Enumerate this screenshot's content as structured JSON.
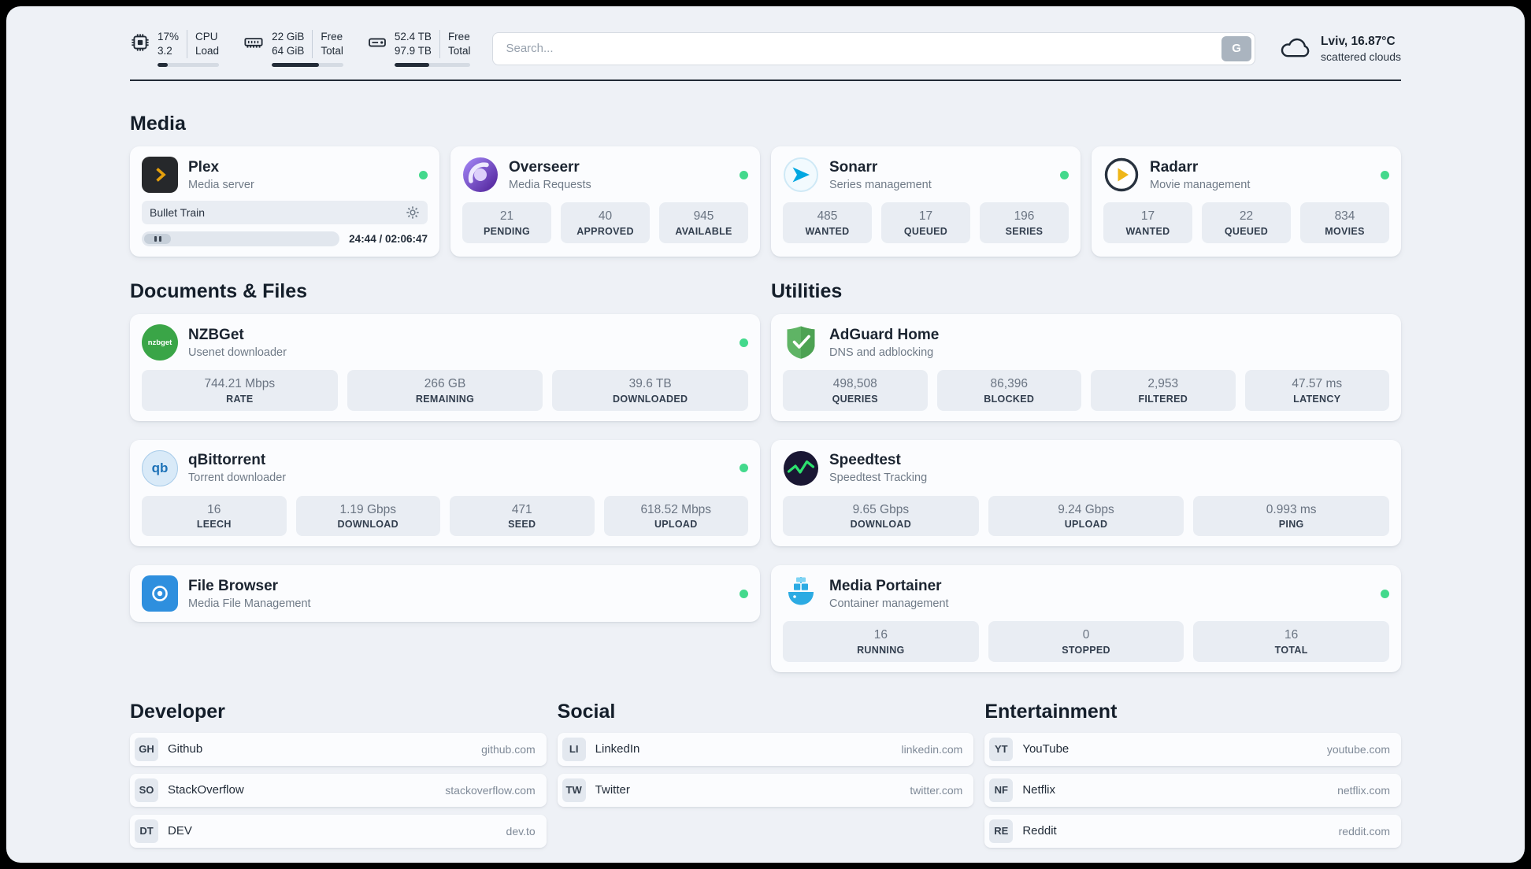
{
  "topbar": {
    "cpu": {
      "line1": "17%",
      "line2": "3.2",
      "label1": "CPU",
      "label2": "Load",
      "percent": 17
    },
    "ram": {
      "line1": "22 GiB",
      "line2": "64 GiB",
      "label1": "Free",
      "label2": "Total",
      "percent": 66
    },
    "disk": {
      "line1": "52.4 TB",
      "line2": "97.9 TB",
      "label1": "Free",
      "label2": "Total",
      "percent": 46
    },
    "search": {
      "placeholder": "Search...",
      "engine_button": "G"
    },
    "weather": {
      "location": "Lviv, 16.87°C",
      "condition": "scattered clouds"
    }
  },
  "sections": {
    "media": {
      "title": "Media",
      "plex": {
        "name": "Plex",
        "subtitle": "Media server",
        "now_playing": "Bullet Train",
        "time": "24:44 / 02:06:47"
      },
      "overseerr": {
        "name": "Overseerr",
        "subtitle": "Media Requests",
        "stats": [
          {
            "value": "21",
            "label": "PENDING"
          },
          {
            "value": "40",
            "label": "APPROVED"
          },
          {
            "value": "945",
            "label": "AVAILABLE"
          }
        ]
      },
      "sonarr": {
        "name": "Sonarr",
        "subtitle": "Series management",
        "stats": [
          {
            "value": "485",
            "label": "WANTED"
          },
          {
            "value": "17",
            "label": "QUEUED"
          },
          {
            "value": "196",
            "label": "SERIES"
          }
        ]
      },
      "radarr": {
        "name": "Radarr",
        "subtitle": "Movie management",
        "stats": [
          {
            "value": "17",
            "label": "WANTED"
          },
          {
            "value": "22",
            "label": "QUEUED"
          },
          {
            "value": "834",
            "label": "MOVIES"
          }
        ]
      }
    },
    "documents": {
      "title": "Documents & Files",
      "nzbget": {
        "name": "NZBGet",
        "subtitle": "Usenet downloader",
        "stats": [
          {
            "value": "744.21 Mbps",
            "label": "RATE"
          },
          {
            "value": "266 GB",
            "label": "REMAINING"
          },
          {
            "value": "39.6 TB",
            "label": "DOWNLOADED"
          }
        ]
      },
      "qbittorrent": {
        "name": "qBittorrent",
        "subtitle": "Torrent downloader",
        "stats": [
          {
            "value": "16",
            "label": "LEECH"
          },
          {
            "value": "1.19 Gbps",
            "label": "DOWNLOAD"
          },
          {
            "value": "471",
            "label": "SEED"
          },
          {
            "value": "618.52 Mbps",
            "label": "UPLOAD"
          }
        ]
      },
      "filebrowser": {
        "name": "File Browser",
        "subtitle": "Media File Management"
      }
    },
    "utilities": {
      "title": "Utilities",
      "adguard": {
        "name": "AdGuard Home",
        "subtitle": "DNS and adblocking",
        "stats": [
          {
            "value": "498,508",
            "label": "QUERIES"
          },
          {
            "value": "86,396",
            "label": "BLOCKED"
          },
          {
            "value": "2,953",
            "label": "FILTERED"
          },
          {
            "value": "47.57 ms",
            "label": "LATENCY"
          }
        ]
      },
      "speedtest": {
        "name": "Speedtest",
        "subtitle": "Speedtest Tracking",
        "stats": [
          {
            "value": "9.65 Gbps",
            "label": "DOWNLOAD"
          },
          {
            "value": "9.24 Gbps",
            "label": "UPLOAD"
          },
          {
            "value": "0.993 ms",
            "label": "PING"
          }
        ]
      },
      "portainer": {
        "name": "Media Portainer",
        "subtitle": "Container management",
        "stats": [
          {
            "value": "16",
            "label": "RUNNING"
          },
          {
            "value": "0",
            "label": "STOPPED"
          },
          {
            "value": "16",
            "label": "TOTAL"
          }
        ]
      }
    },
    "developer": {
      "title": "Developer",
      "items": [
        {
          "abbr": "GH",
          "name": "Github",
          "domain": "github.com"
        },
        {
          "abbr": "SO",
          "name": "StackOverflow",
          "domain": "stackoverflow.com"
        },
        {
          "abbr": "DT",
          "name": "DEV",
          "domain": "dev.to"
        }
      ]
    },
    "social": {
      "title": "Social",
      "items": [
        {
          "abbr": "LI",
          "name": "LinkedIn",
          "domain": "linkedin.com"
        },
        {
          "abbr": "TW",
          "name": "Twitter",
          "domain": "twitter.com"
        }
      ]
    },
    "entertainment": {
      "title": "Entertainment",
      "items": [
        {
          "abbr": "YT",
          "name": "YouTube",
          "domain": "youtube.com"
        },
        {
          "abbr": "NF",
          "name": "Netflix",
          "domain": "netflix.com"
        },
        {
          "abbr": "RE",
          "name": "Reddit",
          "domain": "reddit.com"
        }
      ]
    }
  },
  "colors": {
    "status_online": "#43d98c",
    "plex_gold": "#e5a00d"
  }
}
